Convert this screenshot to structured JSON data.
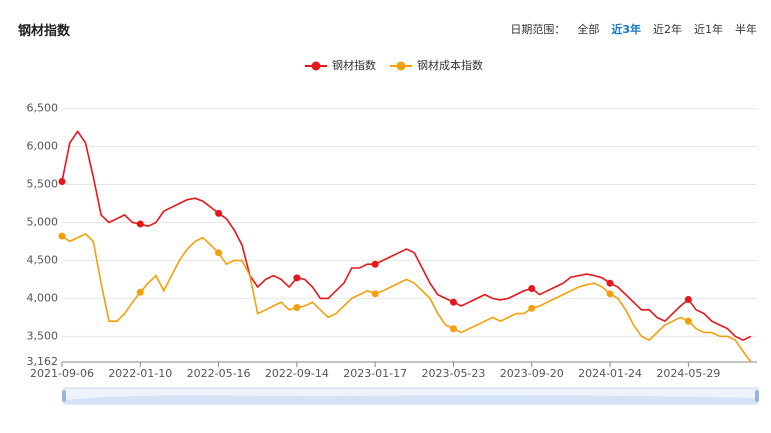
{
  "header": {
    "title": "钢材指数",
    "range_label": "日期范围：",
    "range_options": [
      "全部",
      "近3年",
      "近2年",
      "近1年",
      "半年"
    ],
    "active_option": 1
  },
  "chart_data": {
    "type": "line",
    "categories": [
      "2021-09-06",
      null,
      null,
      null,
      null,
      null,
      null,
      null,
      null,
      null,
      "2022-01-10",
      null,
      null,
      null,
      null,
      null,
      null,
      null,
      null,
      null,
      "2022-05-16",
      null,
      null,
      null,
      null,
      null,
      null,
      null,
      null,
      null,
      "2022-09-14",
      null,
      null,
      null,
      null,
      null,
      null,
      null,
      null,
      null,
      "2023-01-17",
      null,
      null,
      null,
      null,
      null,
      null,
      null,
      null,
      null,
      "2023-05-23",
      null,
      null,
      null,
      null,
      null,
      null,
      null,
      null,
      null,
      "2023-09-20",
      null,
      null,
      null,
      null,
      null,
      null,
      null,
      null,
      null,
      "2024-01-24",
      null,
      null,
      null,
      null,
      null,
      null,
      null,
      null,
      null,
      "2024-05-29",
      null,
      null,
      null,
      null,
      null,
      null,
      null,
      null
    ],
    "series": [
      {
        "name": "钢材指数",
        "color": "#e8151b",
        "values": [
          5540,
          6050,
          6200,
          6050,
          5600,
          5100,
          5000,
          5050,
          5100,
          5000,
          4980,
          4950,
          5000,
          5150,
          5200,
          5250,
          5300,
          5320,
          5280,
          5200,
          5120,
          5050,
          4900,
          4700,
          4300,
          4150,
          4250,
          4300,
          4250,
          4150,
          4270,
          4250,
          4150,
          4000,
          4000,
          4100,
          4200,
          4400,
          4400,
          4450,
          4450,
          4500,
          4550,
          4600,
          4650,
          4600,
          4400,
          4200,
          4050,
          4000,
          3950,
          3900,
          3950,
          4000,
          4050,
          4000,
          3980,
          4000,
          4050,
          4100,
          4130,
          4050,
          4100,
          4150,
          4200,
          4280,
          4300,
          4320,
          4300,
          4270,
          4200,
          4150,
          4050,
          3950,
          3850,
          3850,
          3750,
          3700,
          3800,
          3900,
          3985,
          3850,
          3800,
          3700,
          3650,
          3600,
          3500,
          3450,
          3500
        ]
      },
      {
        "name": "钢材成本指数",
        "color": "#f5a00a",
        "values": [
          4820,
          4750,
          4800,
          4850,
          4750,
          4200,
          3700,
          3700,
          3800,
          3950,
          4080,
          4200,
          4300,
          4100,
          4300,
          4500,
          4650,
          4750,
          4800,
          4700,
          4600,
          4450,
          4500,
          4500,
          4300,
          3800,
          3850,
          3900,
          3950,
          3850,
          3880,
          3900,
          3950,
          3850,
          3750,
          3800,
          3900,
          4000,
          4050,
          4100,
          4060,
          4100,
          4150,
          4200,
          4250,
          4200,
          4100,
          4000,
          3800,
          3650,
          3600,
          3550,
          3600,
          3650,
          3700,
          3750,
          3700,
          3750,
          3800,
          3800,
          3870,
          3900,
          3950,
          4000,
          4050,
          4100,
          4150,
          4180,
          4200,
          4150,
          4060,
          4000,
          3850,
          3650,
          3500,
          3450,
          3550,
          3650,
          3700,
          3750,
          3700,
          3600,
          3550,
          3550,
          3500,
          3500,
          3450,
          3300,
          3162
        ]
      }
    ],
    "ylim": [
      3162,
      6600
    ],
    "yticks": [
      {
        "value": 3162,
        "label": "3,162"
      },
      {
        "value": 3500,
        "label": "3,500"
      },
      {
        "value": 4000,
        "label": "4,000"
      },
      {
        "value": 4500,
        "label": "4,500"
      },
      {
        "value": 5000,
        "label": "5,000"
      },
      {
        "value": 5500,
        "label": "5,500"
      },
      {
        "value": 6000,
        "label": "6,000"
      },
      {
        "value": 6500,
        "label": "6,500"
      }
    ],
    "grid": true
  }
}
